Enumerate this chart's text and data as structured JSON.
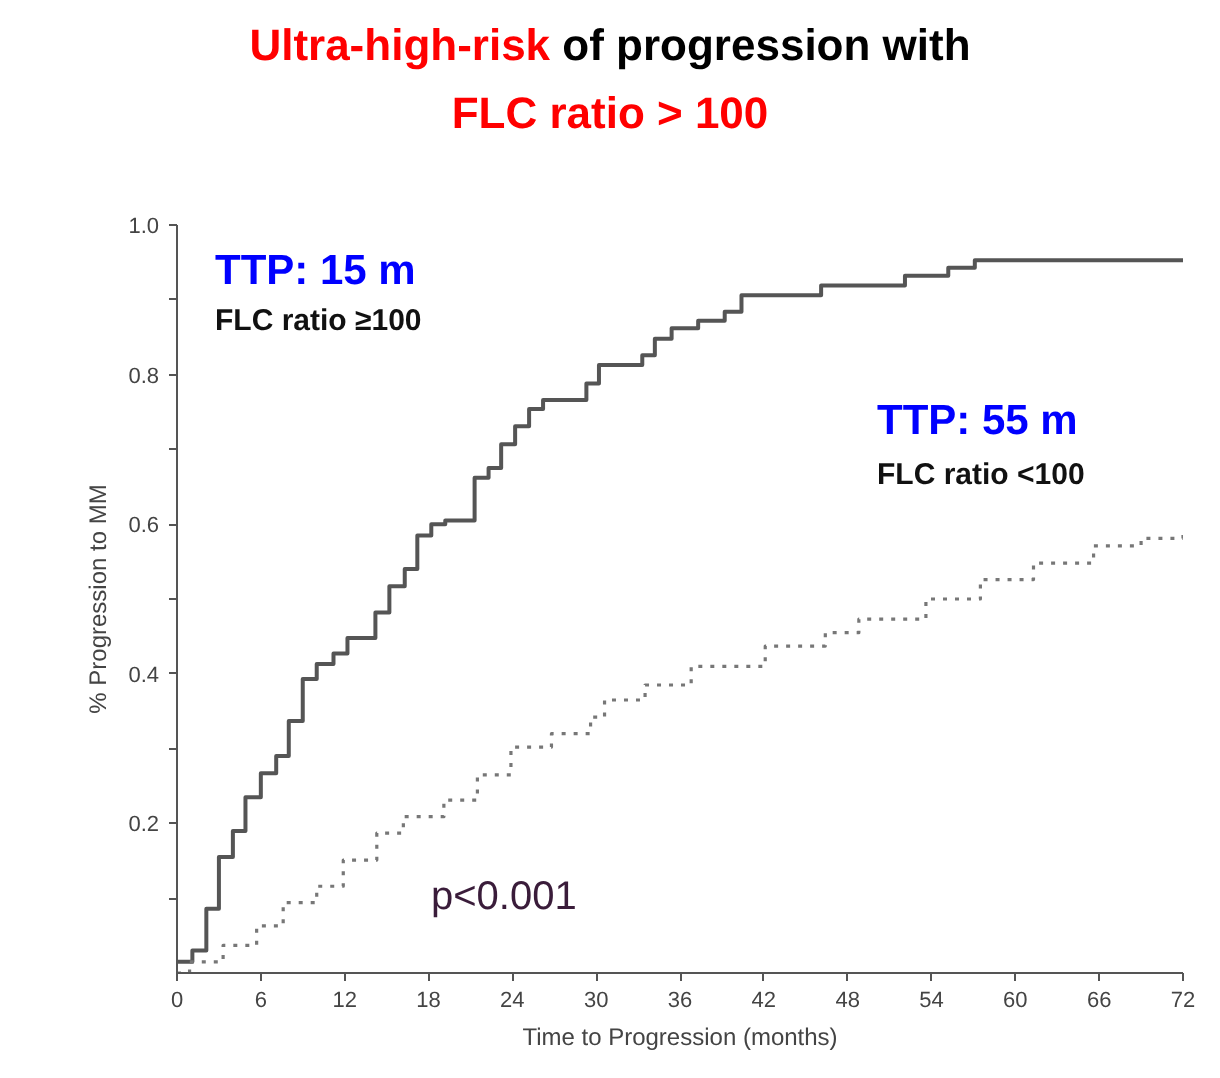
{
  "chart_data": {
    "type": "step",
    "title": "Ultra-high-risk of progression with",
    "subtitle": "FLC ratio > 100",
    "xlabel": "Time to Progression (months)",
    "ylabel": "% Progression to MM",
    "xlim": [
      0,
      72
    ],
    "xticks": [
      0,
      6,
      12,
      18,
      24,
      30,
      36,
      42,
      48,
      54,
      60,
      66,
      72
    ],
    "ylim": [
      0,
      1.0
    ],
    "yticks": [
      {
        "value": 0.1,
        "label": null
      },
      0.2,
      {
        "value": 0.3,
        "label": null
      },
      0.4,
      {
        "value": 0.5,
        "label": null
      },
      0.6,
      {
        "value": 0.7,
        "label": null
      },
      0.8,
      {
        "value": 0.9,
        "label": null
      },
      {
        "value": 1.0,
        "label": "1.0"
      }
    ],
    "grid": false,
    "marker": "none",
    "series": [
      {
        "color": "#555555",
        "line_style": "solid",
        "x": [
          0,
          1.1,
          2.1,
          3.0,
          4.0,
          4.9,
          6.0,
          7.1,
          8.0,
          9.0,
          10.0,
          11.2,
          12.2,
          14.2,
          15.2,
          16.3,
          17.2,
          18.2,
          19.2,
          21.3,
          22.3,
          23.2,
          24.2,
          25.2,
          26.2,
          29.3,
          30.2,
          33.3,
          34.2,
          35.4,
          37.3,
          39.2,
          40.4,
          46.1,
          52.1,
          55.2,
          57.1,
          72
        ],
        "values": [
          0.015,
          0.03,
          0.086,
          0.155,
          0.19,
          0.235,
          0.267,
          0.29,
          0.337,
          0.393,
          0.413,
          0.427,
          0.448,
          0.482,
          0.517,
          0.54,
          0.585,
          0.6,
          0.605,
          0.662,
          0.675,
          0.707,
          0.731,
          0.754,
          0.766,
          0.788,
          0.813,
          0.826,
          0.848,
          0.862,
          0.872,
          0.884,
          0.906,
          0.919,
          0.932,
          0.943,
          0.953,
          0.953
        ]
      },
      {
        "color": "#777777",
        "line_style": "dotted",
        "x": [
          0,
          0.9,
          3.3,
          5.7,
          7.6,
          10.0,
          11.9,
          14.3,
          16.2,
          19.1,
          21.5,
          23.9,
          26.8,
          29.6,
          30.6,
          33.5,
          36.8,
          42.1,
          46.4,
          48.8,
          53.6,
          57.5,
          61.3,
          65.6,
          69.0,
          72
        ],
        "values": [
          0,
          0.015,
          0.037,
          0.063,
          0.094,
          0.116,
          0.151,
          0.187,
          0.209,
          0.231,
          0.265,
          0.302,
          0.32,
          0.342,
          0.365,
          0.385,
          0.41,
          0.437,
          0.455,
          0.473,
          0.5,
          0.526,
          0.548,
          0.571,
          0.581,
          0.588
        ]
      }
    ],
    "annotations": [
      "TTP: 15 m",
      "FLC ratio ≥100",
      "TTP: 55 m",
      "FLC ratio <100",
      "p<0.001"
    ]
  }
}
